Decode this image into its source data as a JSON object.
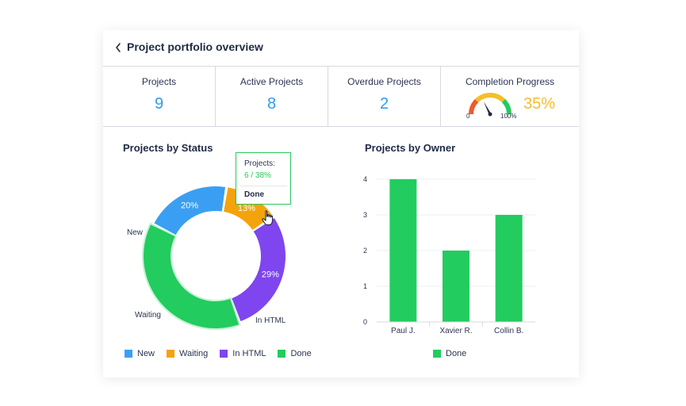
{
  "header": {
    "title": "Project portfolio overview"
  },
  "kpis": [
    {
      "label": "Projects",
      "value": "9"
    },
    {
      "label": "Active Projects",
      "value": "8"
    },
    {
      "label": "Overdue Projects",
      "value": "2"
    }
  ],
  "completion": {
    "label": "Completion Progress",
    "value": "35%",
    "fraction": 0.35,
    "min_label": "0",
    "max_label": "100%"
  },
  "colors": {
    "new": "#3a9ff2",
    "waiting": "#f5a30c",
    "in_html": "#7f45ee",
    "done": "#22cc5e",
    "kpi_value": "#2d9cee",
    "progress": "#f5be2b",
    "gauge_red": "#ef5a2e",
    "gauge_yellow": "#f5be2b",
    "gauge_green": "#22cc5e"
  },
  "status_section": {
    "title": "Projects by Status"
  },
  "owner_section": {
    "title": "Projects by Owner"
  },
  "tooltip": {
    "label": "Projects:",
    "value": "6 / 38%",
    "status": "Done"
  },
  "legend_status": [
    "New",
    "Waiting",
    "In HTML",
    "Done"
  ],
  "legend_owner": [
    "Done"
  ],
  "chart_data": [
    {
      "type": "pie",
      "title": "Projects by Status",
      "categories": [
        "New",
        "Waiting",
        "In HTML",
        "Done"
      ],
      "values": [
        20,
        13,
        29,
        38
      ],
      "labels": [
        "20%",
        "13%",
        "29%",
        ""
      ],
      "colors": [
        "#3a9ff2",
        "#f5a30c",
        "#7f45ee",
        "#22cc5e"
      ],
      "highlighted": "Done",
      "legend": "bottom"
    },
    {
      "type": "bar",
      "title": "Projects by Owner",
      "categories": [
        "Paul J.",
        "Xavier R.",
        "Collin B."
      ],
      "series": [
        {
          "name": "Done",
          "values": [
            4,
            2,
            3
          ]
        }
      ],
      "ylim": [
        0,
        4
      ],
      "yticks": [
        0,
        1,
        2,
        3,
        4
      ],
      "grid": true,
      "legend": "bottom",
      "color": "#22cc5e"
    }
  ]
}
